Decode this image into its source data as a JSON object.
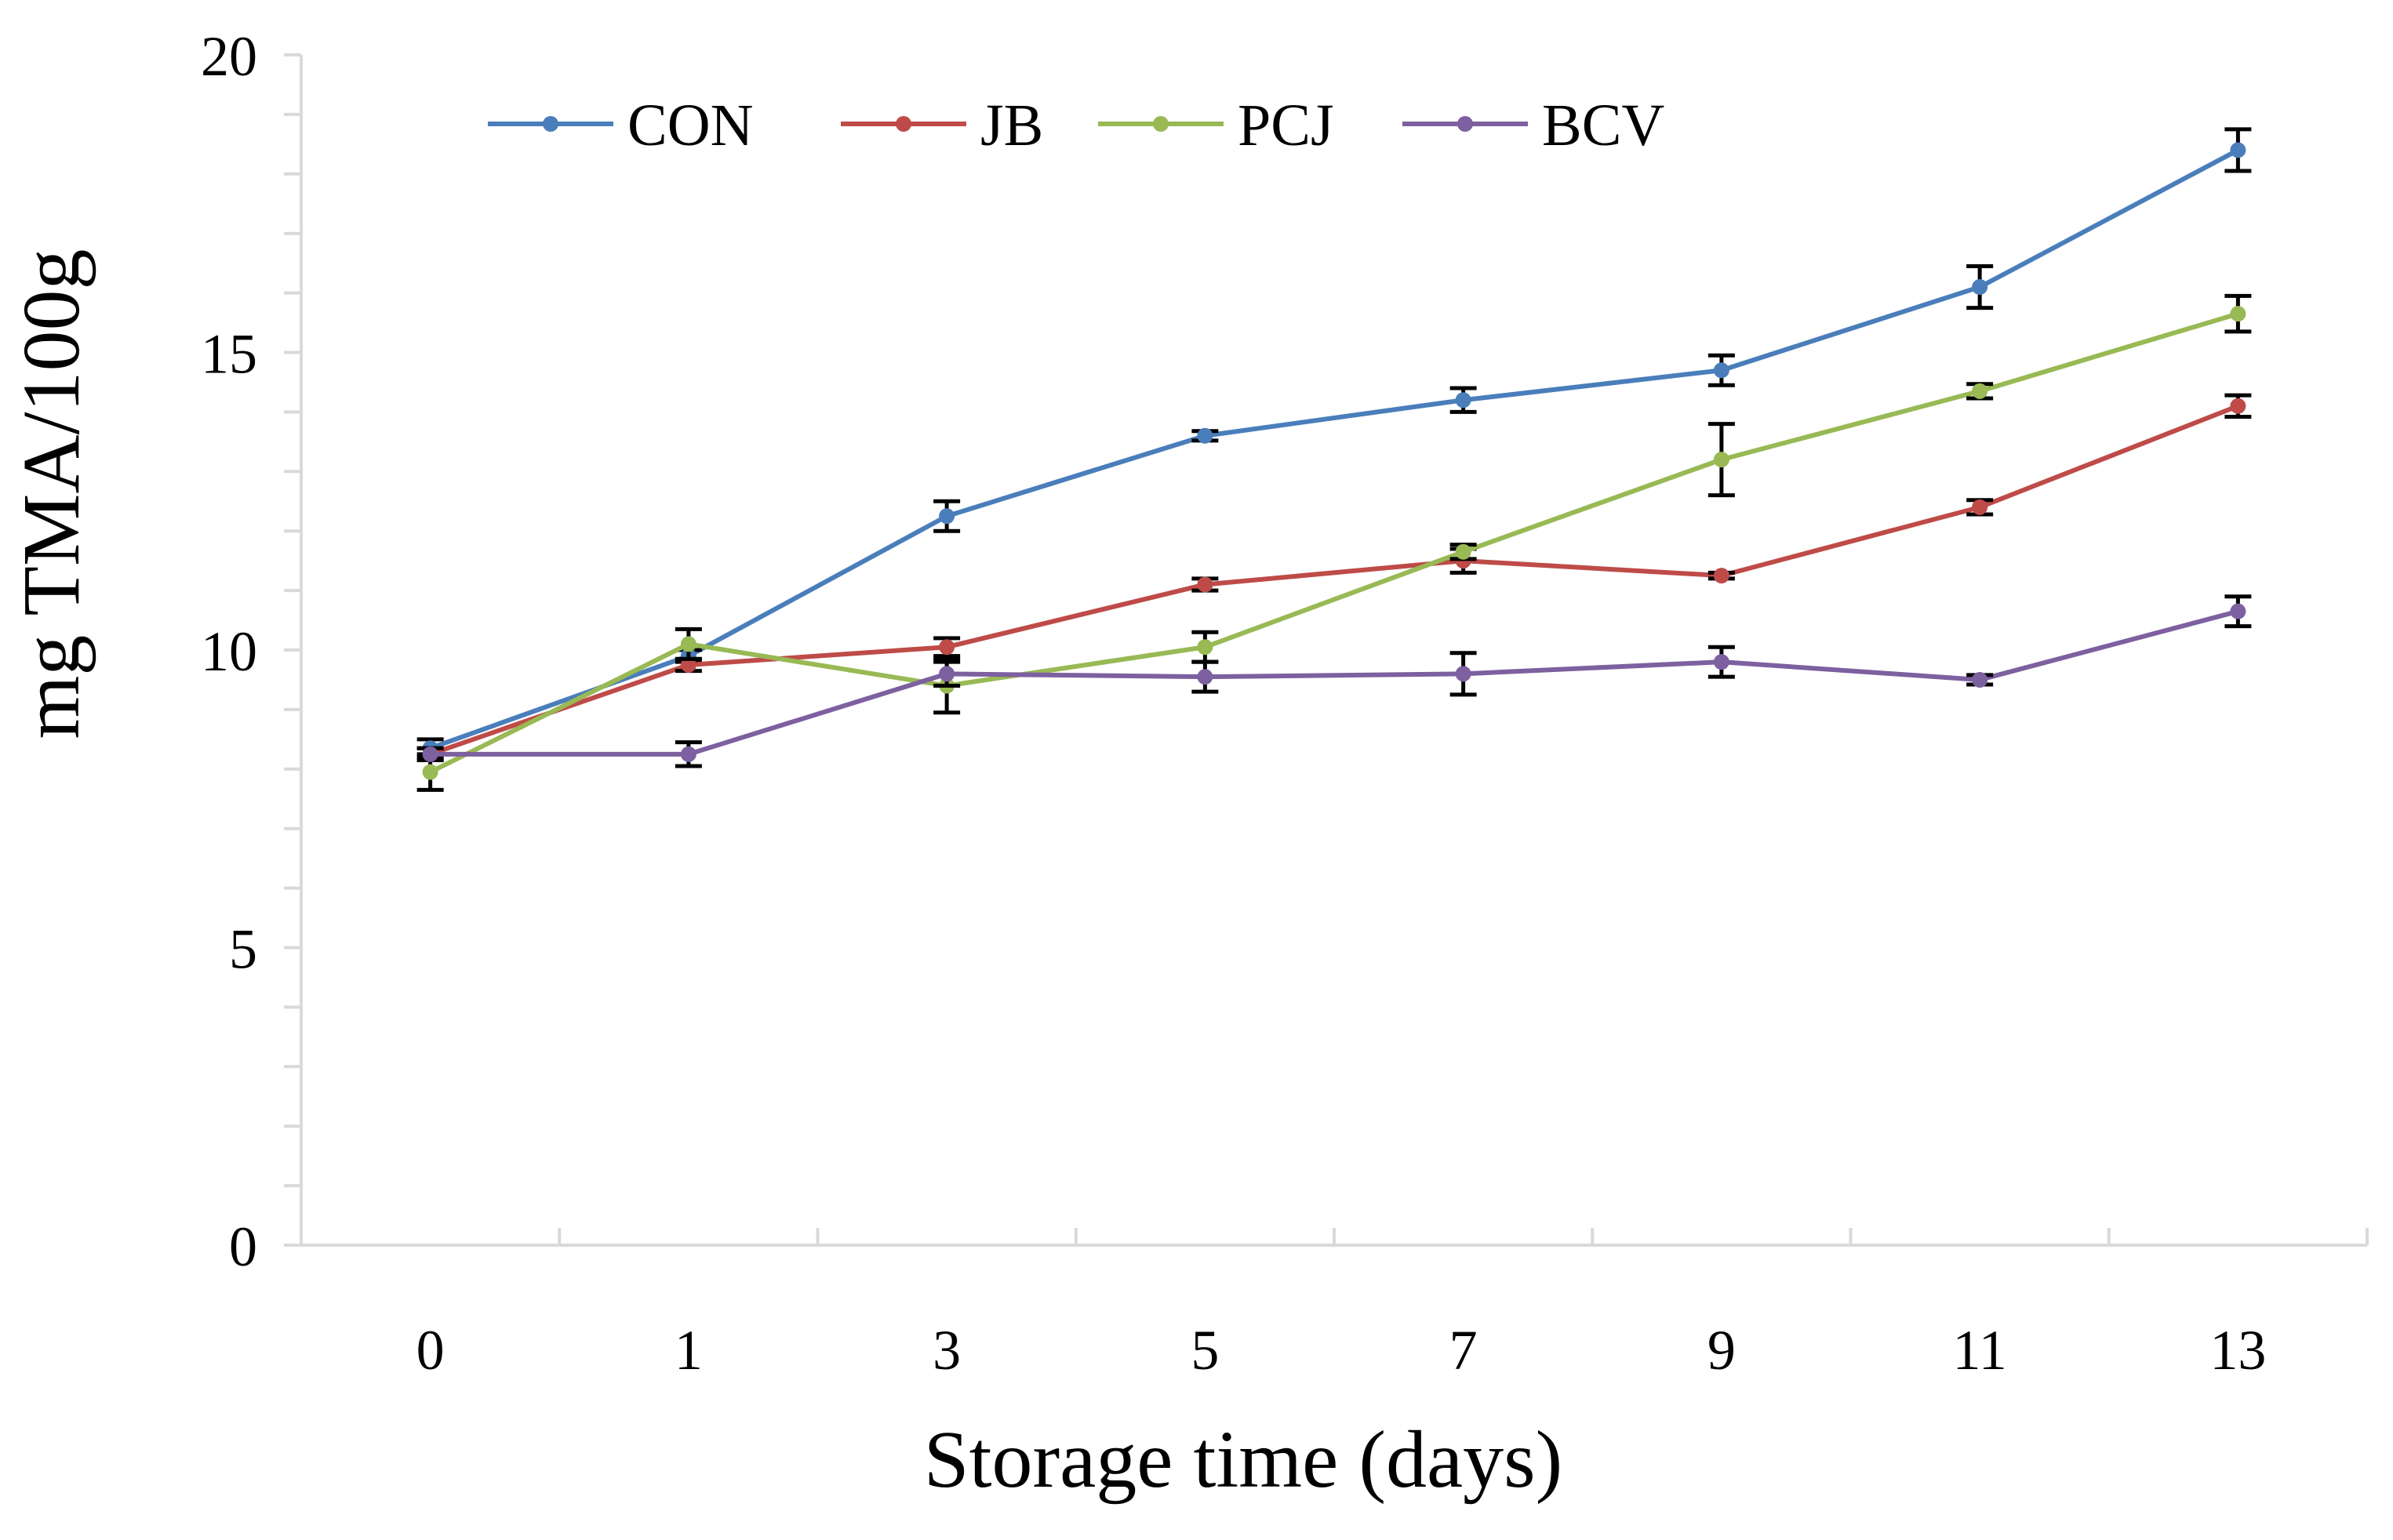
{
  "chart_data": {
    "type": "line",
    "title": "",
    "xlabel": "Storage time (days)",
    "ylabel": "mg TMA/100g",
    "categories": [
      "0",
      "1",
      "3",
      "5",
      "7",
      "9",
      "11",
      "13"
    ],
    "ylim": [
      0,
      20
    ],
    "yticks": [
      "0",
      "5",
      "10",
      "15",
      "20"
    ],
    "legend_position": "top",
    "series": [
      {
        "name": "CON",
        "color": "#4A7EBB",
        "values": [
          8.35,
          9.9,
          12.25,
          13.6,
          14.2,
          14.7,
          16.1,
          18.4
        ],
        "errors": [
          0.15,
          0.1,
          0.25,
          0.08,
          0.2,
          0.25,
          0.35,
          0.35
        ]
      },
      {
        "name": "JB",
        "color": "#BE4B48",
        "values": [
          8.25,
          9.75,
          10.05,
          11.1,
          11.5,
          11.25,
          12.4,
          14.1
        ],
        "errors": [
          0.1,
          0.1,
          0.15,
          0.1,
          0.2,
          0.05,
          0.12,
          0.18
        ]
      },
      {
        "name": "PCJ",
        "color": "#98B954",
        "values": [
          7.95,
          10.1,
          9.4,
          10.05,
          11.65,
          13.2,
          14.35,
          15.65
        ],
        "errors": [
          0.3,
          0.25,
          0.45,
          0.25,
          0.12,
          0.6,
          0.12,
          0.3
        ]
      },
      {
        "name": "BCV",
        "color": "#7D60A0",
        "values": [
          8.25,
          8.25,
          9.6,
          9.55,
          9.6,
          9.8,
          9.5,
          10.65
        ],
        "errors": [
          0.1,
          0.2,
          0.2,
          0.25,
          0.35,
          0.25,
          0.08,
          0.25
        ]
      }
    ]
  }
}
